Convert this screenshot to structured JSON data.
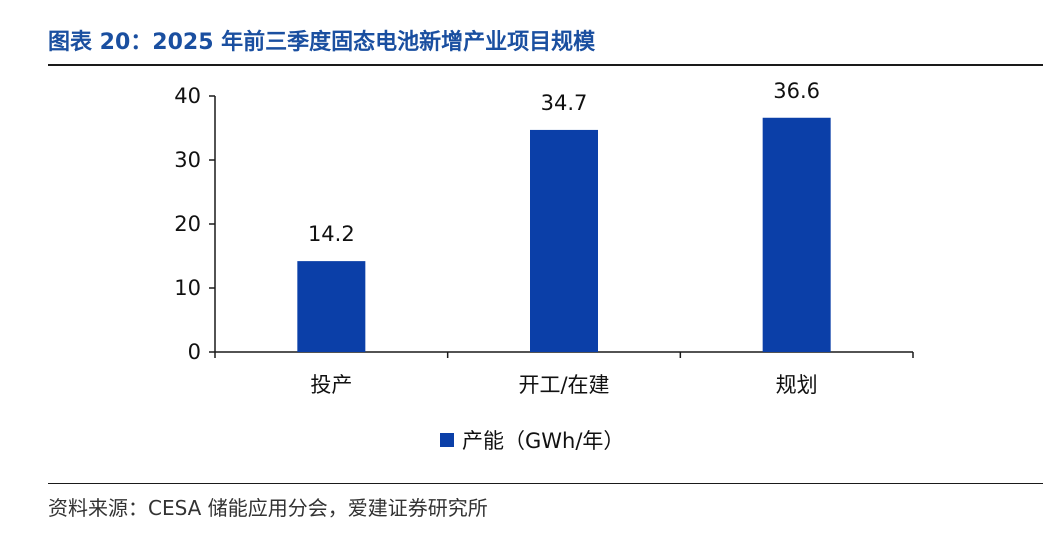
{
  "header": {
    "title": "图表 20：2025 年前三季度固态电池新增产业项目规模"
  },
  "footer": {
    "source": "资料来源：CESA 储能应用分会，爱建证券研究所"
  },
  "colors": {
    "bar": "#0b3fa8",
    "title": "#1a4fa0",
    "axis": "#1a1a1a"
  },
  "chart_data": {
    "type": "bar",
    "categories": [
      "投产",
      "开工/在建",
      "规划"
    ],
    "series": [
      {
        "name": "产能（GWh/年）",
        "values": [
          14.2,
          34.7,
          36.6
        ]
      }
    ],
    "data_labels": [
      "14.2",
      "34.7",
      "36.6"
    ],
    "yticks": [
      "0",
      "10",
      "20",
      "30",
      "40"
    ],
    "ylim": [
      0,
      40
    ],
    "grid": false,
    "legend_position": "bottom"
  }
}
